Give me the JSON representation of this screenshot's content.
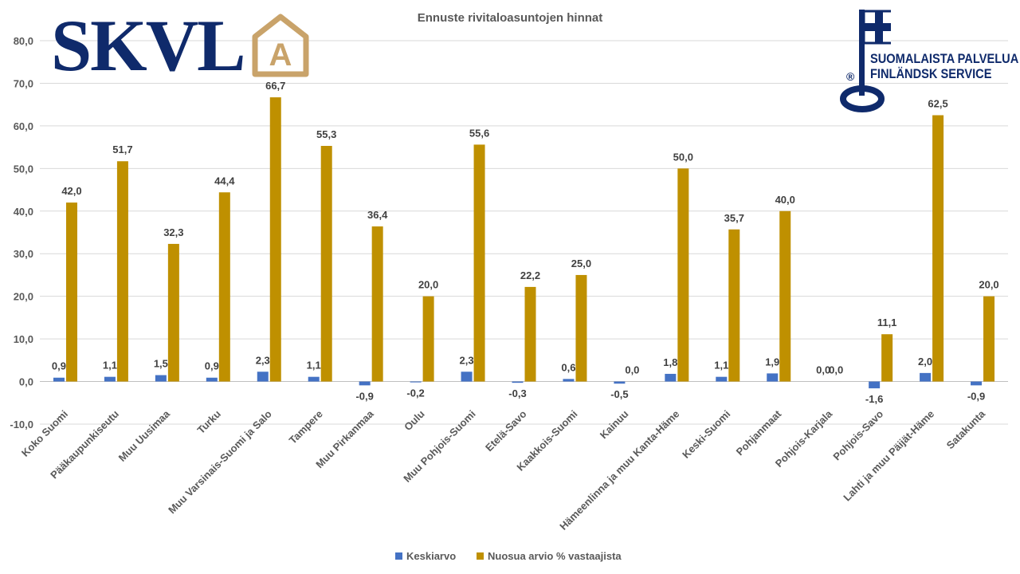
{
  "chart_data": {
    "type": "bar",
    "title": "Ennuste rivitaloasuntojen hinnat",
    "categories": [
      "Koko Suomi",
      "Pääkaupunkiseutu",
      "Muu Uusimaa",
      "Turku",
      "Muu Varsinais-Suomi ja Salo",
      "Tampere",
      "Muu Pirkanmaa",
      "Oulu",
      "Muu Pohjois-Suomi",
      "Etelä-Savo",
      "Kaakkois-Suomi",
      "Kainuu",
      "Hämeenlinna ja muu Kanta-Häme",
      "Keski-Suomi",
      "Pohjanmaat",
      "Pohjois-Karjala",
      "Pohjois-Savo",
      "Lahti ja muu Päijät-Häme",
      "Satakunta"
    ],
    "series": [
      {
        "name": "Keskiarvo",
        "color": "#4472c4",
        "values": [
          0.9,
          1.1,
          1.5,
          0.9,
          2.3,
          1.1,
          -0.9,
          -0.2,
          2.3,
          -0.3,
          0.6,
          -0.5,
          1.8,
          1.1,
          1.9,
          0.0,
          -1.6,
          2.0,
          -0.9
        ],
        "labels": [
          "0,9",
          "1,1",
          "1,5",
          "0,9",
          "2,3",
          "1,1",
          "-0,9",
          "-0,2",
          "2,3",
          "-0,3",
          "0,6",
          "-0,5",
          "1,8",
          "1,1",
          "1,9",
          "0,0",
          "-1,6",
          "2,0",
          "-0,9"
        ]
      },
      {
        "name": "Nuosua arvio % vastaajista",
        "color": "#bf9000",
        "values": [
          42.0,
          51.7,
          32.3,
          44.4,
          66.7,
          55.3,
          36.4,
          20.0,
          55.6,
          22.2,
          25.0,
          0.0,
          50.0,
          35.7,
          40.0,
          0.0,
          11.1,
          62.5,
          20.0
        ],
        "labels": [
          "42,0",
          "51,7",
          "32,3",
          "44,4",
          "66,7",
          "55,3",
          "36,4",
          "20,0",
          "55,6",
          "22,2",
          "25,0",
          "0,0",
          "50,0",
          "35,7",
          "40,0",
          "0,0",
          "11,1",
          "62,5",
          "20,0"
        ]
      }
    ],
    "ylim": [
      -10,
      80
    ],
    "yticks": [
      -10,
      0,
      10,
      20,
      30,
      40,
      50,
      60,
      70,
      80
    ],
    "ytick_labels": [
      "-10,0",
      "0,0",
      "10,0",
      "20,0",
      "30,0",
      "40,0",
      "50,0",
      "60,0",
      "70,0",
      "80,0"
    ],
    "grid": true,
    "legend_position": "bottom"
  },
  "logos": {
    "skvl": {
      "text": "SKVL",
      "house_letter": "A",
      "color": "#0f2a6b",
      "house_color": "#c9a36a"
    },
    "service": {
      "line1": "SUOMALAISTA PALVELUA",
      "line2": "FINLÄNDSK SERVICE",
      "reg": "®",
      "color": "#0f2a6b",
      "icon": "key-flag-icon"
    }
  }
}
